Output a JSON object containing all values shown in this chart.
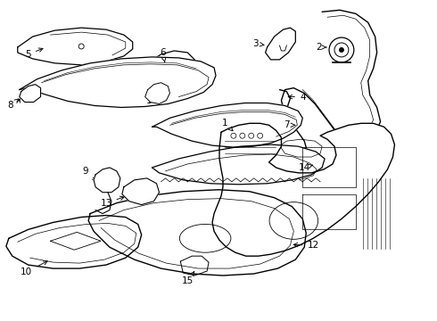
{
  "background_color": "#ffffff",
  "line_color": "#000000",
  "figsize": [
    4.9,
    3.6
  ],
  "dpi": 100,
  "font_size": 7.5
}
